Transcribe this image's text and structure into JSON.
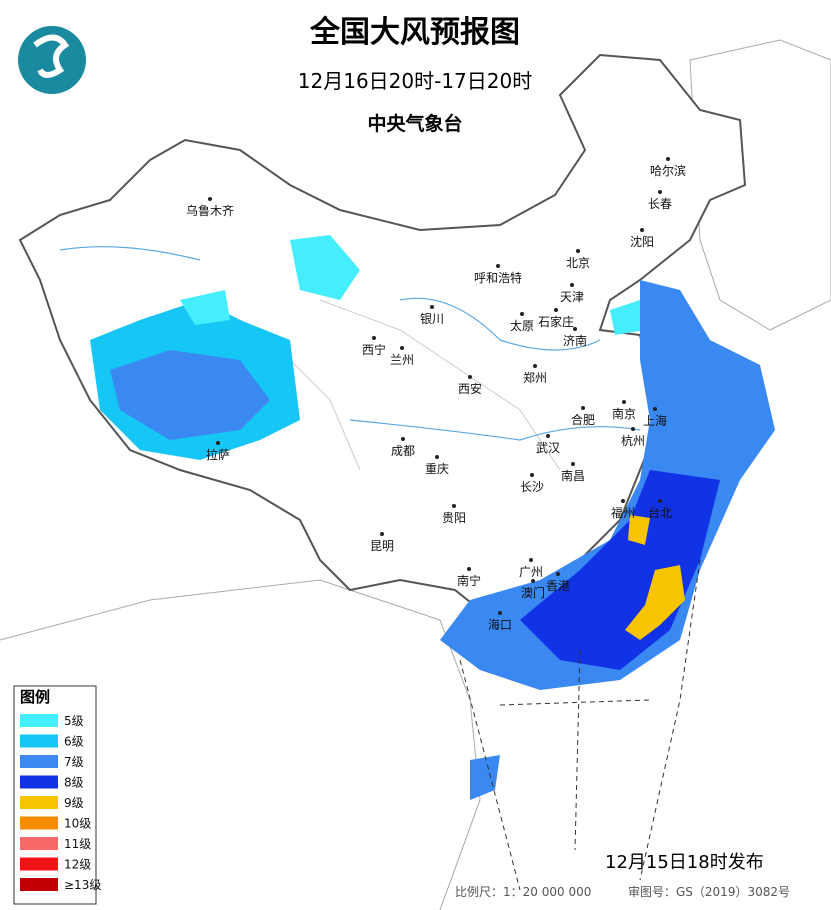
{
  "header": {
    "title": "全国大风预报图",
    "period": "12月16日20时-17日20时",
    "issuer": "中央气象台"
  },
  "legend": {
    "title": "图例",
    "items": [
      {
        "label": "5级",
        "color": "#44eeff"
      },
      {
        "label": "6级",
        "color": "#16c6f5"
      },
      {
        "label": "7级",
        "color": "#3a88f2"
      },
      {
        "label": "8级",
        "color": "#1232e6"
      },
      {
        "label": "9级",
        "color": "#f6c400"
      },
      {
        "label": "10级",
        "color": "#f88c00"
      },
      {
        "label": "11级",
        "color": "#f86a6a"
      },
      {
        "label": "12级",
        "color": "#f01414"
      },
      {
        "label": "≥13级",
        "color": "#c00000"
      }
    ]
  },
  "cities": [
    "乌鲁木齐",
    "哈尔滨",
    "长春",
    "沈阳",
    "北京",
    "呼和浩特",
    "天津",
    "银川",
    "太原",
    "石家庄",
    "济南",
    "西宁",
    "兰州",
    "郑州",
    "西安",
    "南京",
    "合肥",
    "上海",
    "成都",
    "武汉",
    "杭州",
    "拉萨",
    "重庆",
    "南昌",
    "长沙",
    "福州",
    "台北",
    "贵阳",
    "昆明",
    "南宁",
    "广州",
    "澳门",
    "香港",
    "海口"
  ],
  "footer": {
    "issued": "12月15日18时发布",
    "scale": "比例尺：1：20 000 000",
    "review": "审图号：GS（2019）3082号"
  }
}
